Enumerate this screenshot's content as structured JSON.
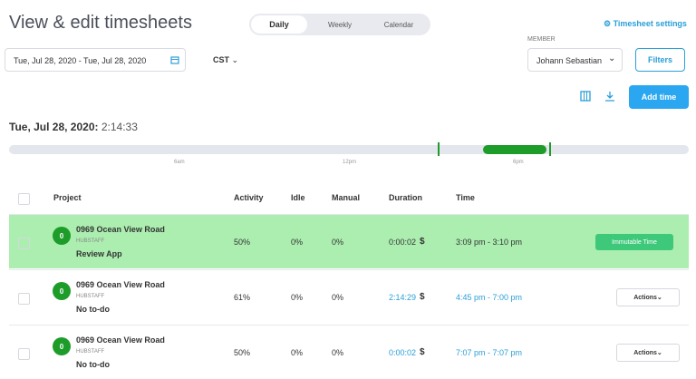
{
  "header": {
    "title": "View & edit timesheets",
    "tabs": [
      "Daily",
      "Weekly",
      "Calendar"
    ],
    "settings": "Timesheet settings"
  },
  "filters": {
    "date_range": "Tue, Jul 28, 2020 - Tue, Jul 28, 2020",
    "timezone": "CST",
    "member_label": "MEMBER",
    "member": "Johann Sebastian",
    "filters_button": "Filters",
    "add_time": "Add time"
  },
  "summary": {
    "date": "Tue, Jul 28, 2020:",
    "total": "2:14:33"
  },
  "timeline": {
    "labels": [
      "6am",
      "12pm",
      "6pm"
    ]
  },
  "table": {
    "columns": [
      "Project",
      "Activity",
      "Idle",
      "Manual",
      "Duration",
      "Time"
    ],
    "rows": [
      {
        "avatar": "0",
        "project": "0969 Ocean View Road",
        "org": "HUBSTAFF",
        "task": "Review App",
        "activity": "50%",
        "idle": "0%",
        "manual": "0%",
        "duration": "0:00:02",
        "currency": "$",
        "time": "3:09 pm - 3:10 pm",
        "action": "Immutable Time"
      },
      {
        "avatar": "0",
        "project": "0969 Ocean View Road",
        "org": "HUBSTAFF",
        "task": "No to-do",
        "activity": "61%",
        "idle": "0%",
        "manual": "0%",
        "duration": "2:14:29",
        "currency": "$",
        "time": "4:45 pm - 7:00 pm",
        "action": "Actions"
      },
      {
        "avatar": "0",
        "project": "0969 Ocean View Road",
        "org": "HUBSTAFF",
        "task": "No to-do",
        "activity": "50%",
        "idle": "0%",
        "manual": "0%",
        "duration": "0:00:02",
        "currency": "$",
        "time": "7:07 pm - 7:07 pm",
        "action": "Actions"
      }
    ]
  }
}
